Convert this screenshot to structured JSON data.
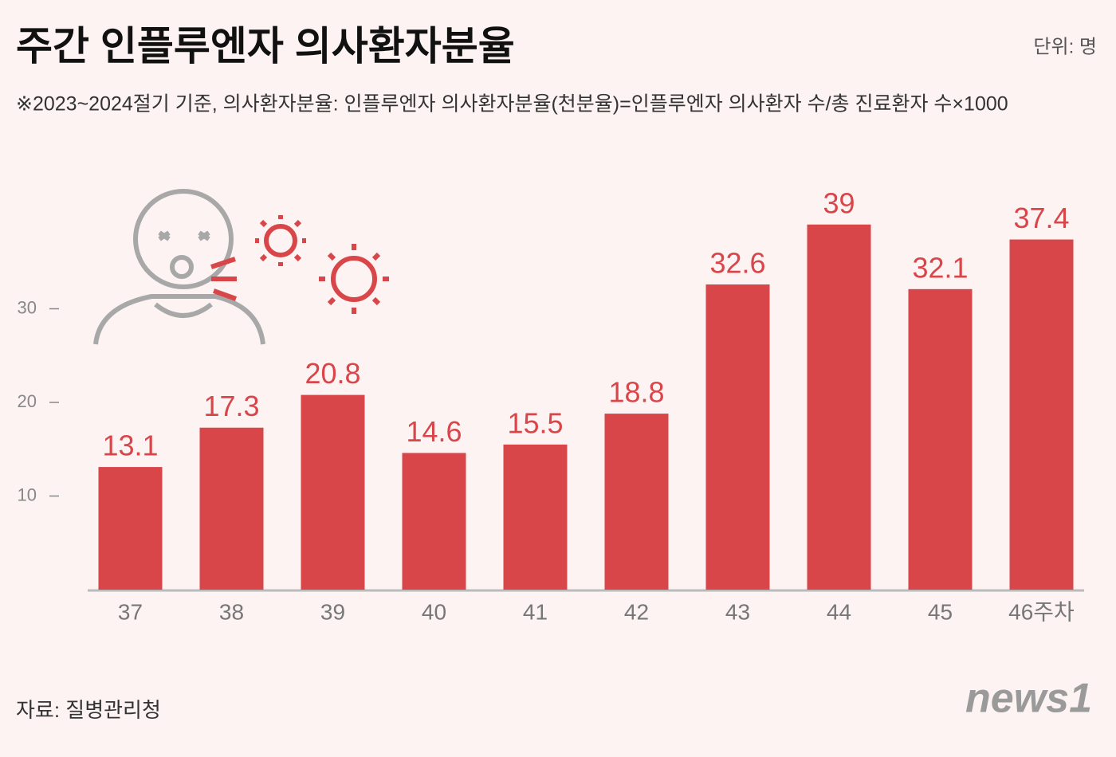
{
  "chart_data": {
    "type": "bar",
    "title": "주간 인플루엔자 의사환자분율",
    "unit_label": "단위: 명",
    "subtitle": "※2023~2024절기 기준, 의사환자분율: 인플루엔자 의사환자분율(천분율)=인플루엔자 의사환자 수/총 진료환자 수×1000",
    "categories": [
      "37",
      "38",
      "39",
      "40",
      "41",
      "42",
      "43",
      "44",
      "45",
      "46주차"
    ],
    "values": [
      13.1,
      17.3,
      20.8,
      14.6,
      15.5,
      18.8,
      32.6,
      39,
      32.1,
      37.4
    ],
    "color": "#d9464a",
    "ylim": [
      0,
      40
    ],
    "yticks": [
      10,
      20,
      30
    ],
    "grid": false
  },
  "source": "자료: 질병관리청",
  "logo": "news1"
}
